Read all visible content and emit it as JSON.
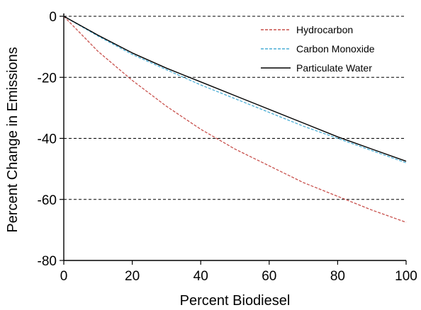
{
  "chart_data": {
    "type": "line",
    "title": "",
    "xlabel": "Percent Biodiesel",
    "ylabel": "Percent Change in Emissions",
    "xlim": [
      0,
      100
    ],
    "ylim": [
      -80,
      0
    ],
    "x_ticks": [
      "0",
      "20",
      "40",
      "60",
      "80",
      "100"
    ],
    "y_ticks": [
      "0",
      "-20",
      "-40",
      "-60",
      "-80"
    ],
    "grid": "horizontal dashed",
    "legend_position": "top-right",
    "x": [
      0,
      10,
      20,
      30,
      40,
      50,
      60,
      70,
      80,
      90,
      100
    ],
    "series": [
      {
        "name": "Hydrocarbon",
        "color": "#c8504c",
        "dash": "dashed",
        "values": [
          0,
          -11.5,
          -21,
          -29.5,
          -37,
          -43.5,
          -49,
          -54.5,
          -59,
          -63.5,
          -67.5
        ]
      },
      {
        "name": "Carbon Monoxide",
        "color": "#4aaed6",
        "dash": "dashed",
        "values": [
          0,
          -6.5,
          -12.5,
          -17.5,
          -22.5,
          -27,
          -31.5,
          -36,
          -40,
          -44,
          -48
        ]
      },
      {
        "name": "Particulate Water",
        "color": "#000000",
        "dash": "solid",
        "values": [
          0,
          -6.2,
          -12,
          -17,
          -21.5,
          -26,
          -30.5,
          -35,
          -39.5,
          -43.5,
          -47.5
        ]
      }
    ]
  }
}
